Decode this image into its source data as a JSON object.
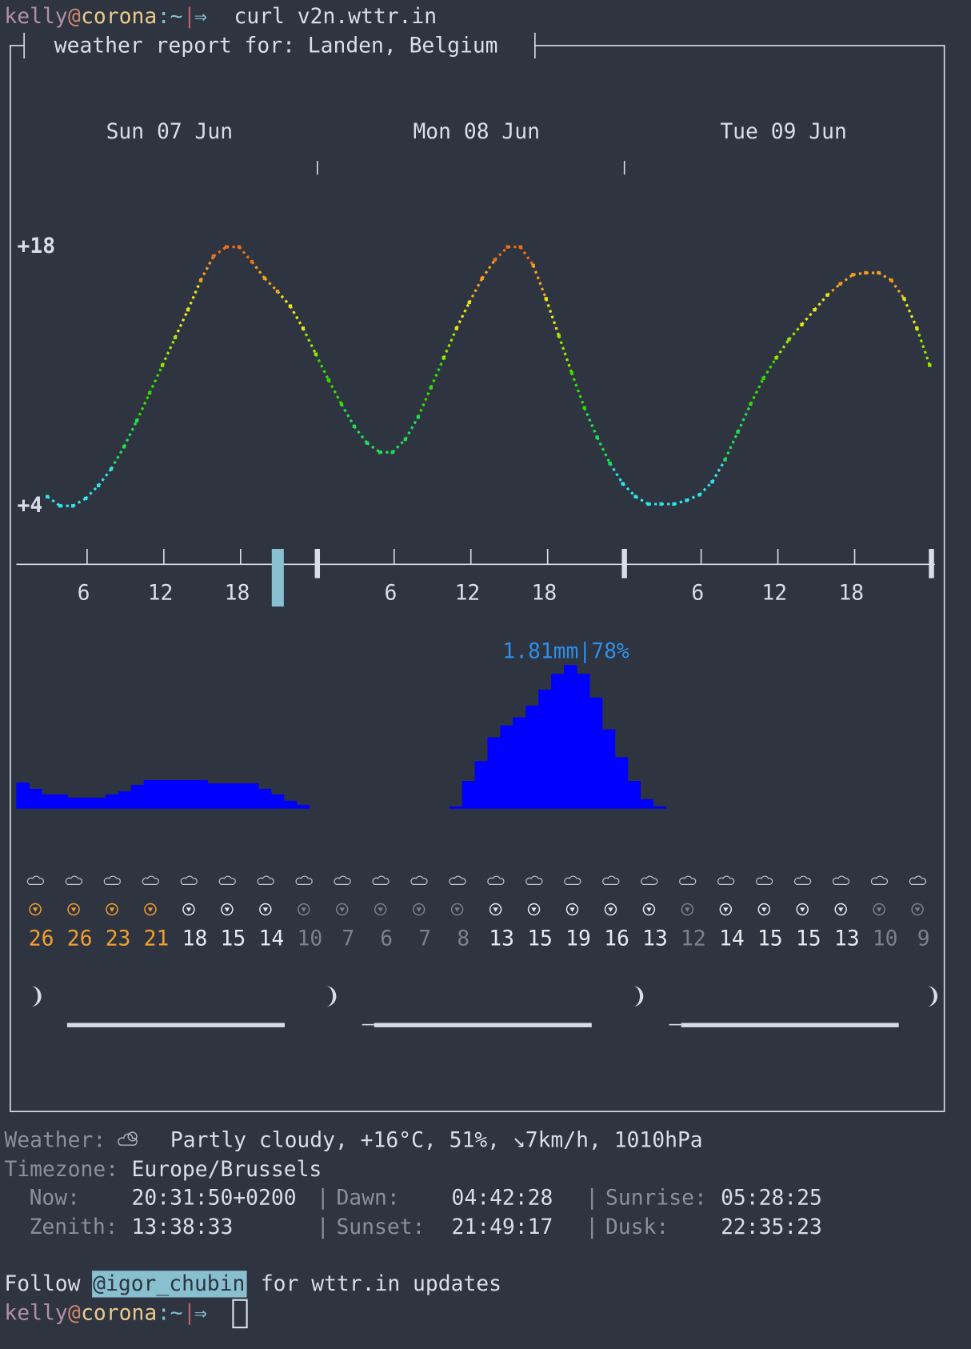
{
  "prompt": {
    "user": "kelly",
    "at": "@",
    "host": "corona",
    "path": ":~",
    "bar": "|",
    "arrow": "⇒",
    "command": "curl v2n.wttr.in"
  },
  "report_title": "weather report for: Landen, Belgium",
  "days": [
    "Sun 07 Jun",
    "Mon 08 Jun",
    "Tue 09 Jun"
  ],
  "hour_ticks": [
    "6",
    "12",
    "18"
  ],
  "temperature": {
    "ylim": [
      4,
      18
    ],
    "yticks": [
      {
        "value": 18,
        "label": "+18"
      },
      {
        "value": 4,
        "label": "+4"
      }
    ],
    "values": [
      4.5,
      4.0,
      4.0,
      4.4,
      5.1,
      6.0,
      7.2,
      8.6,
      10.1,
      11.6,
      13.1,
      14.6,
      16.2,
      17.5,
      18.0,
      18.0,
      17.2,
      16.3,
      15.6,
      14.8,
      13.6,
      12.2,
      10.8,
      9.5,
      8.3,
      7.4,
      6.9,
      6.9,
      7.6,
      8.8,
      10.4,
      12.0,
      13.6,
      15.0,
      16.3,
      17.3,
      18.0,
      18.0,
      17.0,
      15.2,
      13.2,
      11.2,
      9.3,
      7.7,
      6.3,
      5.2,
      4.5,
      4.1,
      4.1,
      4.1,
      4.3,
      4.6,
      5.3,
      6.5,
      8.0,
      9.5,
      10.9,
      12.0,
      13.0,
      13.8,
      14.6,
      15.4,
      16.0,
      16.5,
      16.6,
      16.6,
      16.2,
      15.2,
      13.6,
      11.6
    ]
  },
  "precipitation": {
    "label": "1.81mm|78%",
    "color": "#0000ff",
    "values": [
      0.33,
      0.25,
      0.18,
      0.18,
      0.14,
      0.14,
      0.14,
      0.18,
      0.22,
      0.3,
      0.36,
      0.36,
      0.36,
      0.36,
      0.36,
      0.32,
      0.32,
      0.32,
      0.32,
      0.25,
      0.18,
      0.1,
      0.05,
      0,
      0,
      0,
      0,
      0,
      0,
      0,
      0,
      0,
      0,
      0,
      0.03,
      0.35,
      0.6,
      0.9,
      1.05,
      1.15,
      1.3,
      1.5,
      1.7,
      1.81,
      1.7,
      1.4,
      1.0,
      0.65,
      0.35,
      0.12,
      0.03,
      0,
      0,
      0,
      0,
      0,
      0,
      0,
      0,
      0,
      0,
      0,
      0,
      0,
      0,
      0,
      0,
      0,
      0,
      0,
      0,
      0
    ]
  },
  "wind": {
    "speeds": [
      26,
      26,
      23,
      21,
      18,
      15,
      14,
      10,
      7,
      6,
      7,
      8,
      13,
      15,
      19,
      16,
      13,
      12,
      14,
      15,
      15,
      13,
      10,
      9
    ],
    "colors": [
      "#f0a030",
      "#f0a030",
      "#f0a030",
      "#f0a030",
      "#e5e9f0",
      "#e5e9f0",
      "#e5e9f0",
      "#7b808a",
      "#7b808a",
      "#7b808a",
      "#7b808a",
      "#7b808a",
      "#e5e9f0",
      "#e5e9f0",
      "#e5e9f0",
      "#e5e9f0",
      "#e5e9f0",
      "#7b808a",
      "#e5e9f0",
      "#e5e9f0",
      "#e5e9f0",
      "#e5e9f0",
      "#7b808a",
      "#7b808a"
    ]
  },
  "current": {
    "label": "Weather:",
    "text": "Partly cloudy, +16°C, 51%, ↘7km/h, 1010hPa"
  },
  "timezone": {
    "label": "Timezone:",
    "value": "Europe/Brussels"
  },
  "astro": {
    "separator": "|",
    "rows": [
      [
        "Now:",
        "20:31:50+0200",
        "Dawn:",
        "04:42:28",
        "Sunrise:",
        "05:28:25"
      ],
      [
        "Zenith:",
        "13:38:33",
        "Sunset:",
        "21:49:17",
        "Dusk:",
        "22:35:23"
      ]
    ]
  },
  "follow": {
    "before": "Follow",
    "handle": "@igor_chubin",
    "after": "for wttr.in updates"
  }
}
